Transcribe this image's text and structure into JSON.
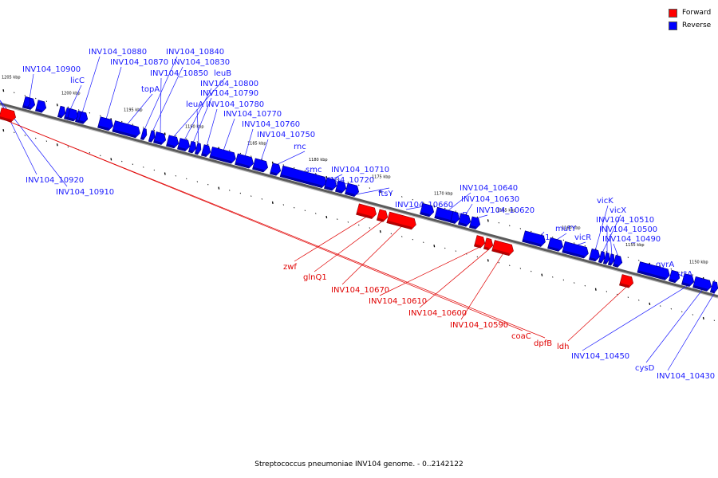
{
  "legend": {
    "forward_label": "Forward",
    "reverse_label": "Reverse",
    "forward_color": "#ff0000",
    "reverse_color": "#0000ff"
  },
  "caption": "Streptococcus pneumoniae INV104 genome. - 0..2142122",
  "scale": {
    "kbp_labels": [
      "1205 kbp",
      "1200 kbp",
      "1195 kbp",
      "1190 kbp",
      "1185 kbp",
      "1180 kbp",
      "1175 kbp",
      "1170 kbp",
      "1165 kbp",
      "1160 kbp",
      "1155 kbp",
      "1150 kbp"
    ]
  },
  "genes": [
    {
      "name": "INV104_10900",
      "strand": "reverse"
    },
    {
      "name": "licC",
      "strand": "reverse"
    },
    {
      "name": "INV104_10920",
      "strand": "reverse"
    },
    {
      "name": "INV104_10910",
      "strand": "reverse"
    },
    {
      "name": "INV104_10880",
      "strand": "reverse"
    },
    {
      "name": "INV104_10870",
      "strand": "reverse"
    },
    {
      "name": "topA",
      "strand": "reverse"
    },
    {
      "name": "INV104_10840",
      "strand": "reverse"
    },
    {
      "name": "INV104_10830",
      "strand": "reverse"
    },
    {
      "name": "INV104_10850",
      "strand": "reverse"
    },
    {
      "name": "leuB",
      "strand": "reverse"
    },
    {
      "name": "INV104_10800",
      "strand": "reverse"
    },
    {
      "name": "INV104_10790",
      "strand": "reverse"
    },
    {
      "name": "leuA",
      "strand": "reverse"
    },
    {
      "name": "INV104_10780",
      "strand": "reverse"
    },
    {
      "name": "INV104_10770",
      "strand": "reverse"
    },
    {
      "name": "INV104_10760",
      "strand": "reverse"
    },
    {
      "name": "INV104_10750",
      "strand": "reverse"
    },
    {
      "name": "rnc",
      "strand": "reverse"
    },
    {
      "name": "smc",
      "strand": "reverse"
    },
    {
      "name": "INV104_10710",
      "strand": "reverse"
    },
    {
      "name": "INV104_10720",
      "strand": "reverse"
    },
    {
      "name": "ftsY",
      "strand": "reverse"
    },
    {
      "name": "INV104_10660",
      "strand": "reverse"
    },
    {
      "name": "INV104_10640",
      "strand": "reverse"
    },
    {
      "name": "INV104_10630",
      "strand": "reverse"
    },
    {
      "name": "uvrB",
      "strand": "reverse"
    },
    {
      "name": "INV104_10620",
      "strand": "reverse"
    },
    {
      "name": "fhs1",
      "strand": "reverse"
    },
    {
      "name": "mutY",
      "strand": "reverse"
    },
    {
      "name": "vicR",
      "strand": "reverse"
    },
    {
      "name": "vicK",
      "strand": "reverse"
    },
    {
      "name": "vicX",
      "strand": "reverse"
    },
    {
      "name": "INV104_10510",
      "strand": "reverse"
    },
    {
      "name": "INV104_10500",
      "strand": "reverse"
    },
    {
      "name": "INV104_10490",
      "strand": "reverse"
    },
    {
      "name": "gyrA",
      "strand": "reverse"
    },
    {
      "name": "srtA",
      "strand": "reverse"
    },
    {
      "name": "INV104_10450",
      "strand": "reverse"
    },
    {
      "name": "cysD",
      "strand": "reverse"
    },
    {
      "name": "INV104_10430",
      "strand": "reverse"
    },
    {
      "name": "zwf",
      "strand": "forward"
    },
    {
      "name": "glnQ1",
      "strand": "forward"
    },
    {
      "name": "INV104_10670",
      "strand": "forward"
    },
    {
      "name": "INV104_10610",
      "strand": "forward"
    },
    {
      "name": "INV104_10600",
      "strand": "forward"
    },
    {
      "name": "INV104_10590",
      "strand": "forward"
    },
    {
      "name": "coaC",
      "strand": "forward"
    },
    {
      "name": "dpfB",
      "strand": "forward"
    },
    {
      "name": "ldh",
      "strand": "forward"
    }
  ]
}
